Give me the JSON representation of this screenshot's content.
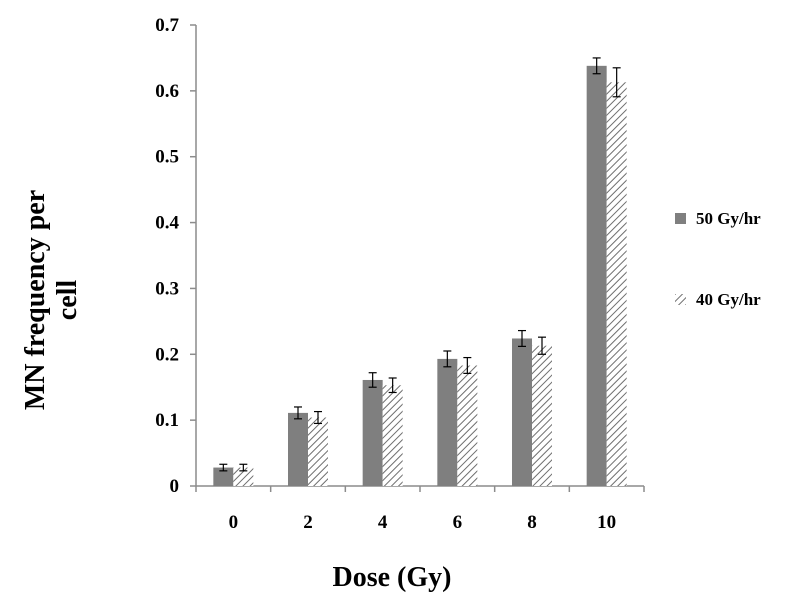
{
  "chart_data": {
    "type": "bar",
    "title": "",
    "xlabel": "Dose (Gy)",
    "ylabel_lines": [
      "MN frequency per",
      "cell"
    ],
    "categories": [
      "0",
      "2",
      "4",
      "6",
      "8",
      "10"
    ],
    "ylim": [
      0,
      0.7
    ],
    "yticks": [
      "0",
      "0.1",
      "0.2",
      "0.3",
      "0.4",
      "0.5",
      "0.6",
      "0.7"
    ],
    "grid": false,
    "legend_position": "right",
    "series": [
      {
        "name": "50 Gy/hr",
        "style": "solid",
        "color": "#7f7f7f",
        "values": [
          0.028,
          0.111,
          0.161,
          0.193,
          0.224,
          0.638
        ],
        "errors": [
          0.005,
          0.009,
          0.011,
          0.012,
          0.012,
          0.012
        ]
      },
      {
        "name": "40 Gy/hr",
        "style": "hatched",
        "color": "#808080",
        "values": [
          0.028,
          0.104,
          0.153,
          0.183,
          0.213,
          0.613
        ],
        "errors": [
          0.005,
          0.009,
          0.011,
          0.012,
          0.013,
          0.022
        ]
      }
    ]
  }
}
